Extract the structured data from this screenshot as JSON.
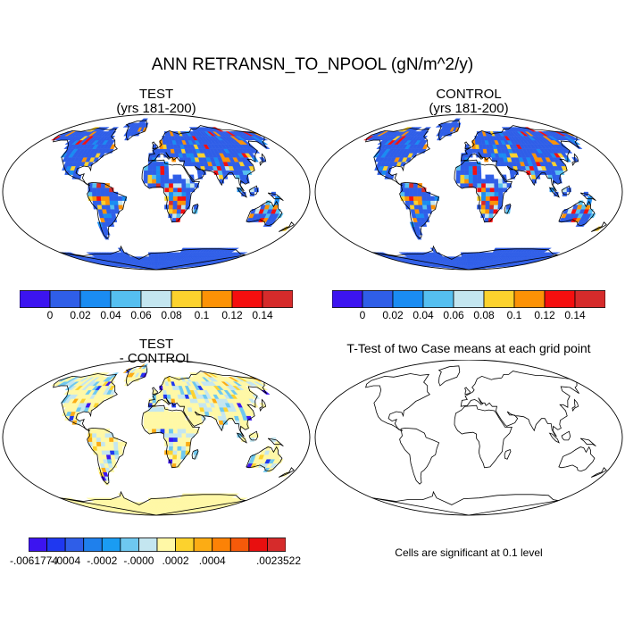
{
  "title": "ANN RETRANSN_TO_NPOOL (gN/m^2/y)",
  "panels": {
    "test": {
      "title": "TEST",
      "subtitle": "(yrs 181-200)"
    },
    "control": {
      "title": "CONTROL",
      "subtitle": "(yrs 181-200)"
    },
    "diff": {
      "title": "TEST",
      "subtitle": "- CONTROL"
    },
    "ttest": {
      "title": "T-Test of two Case means at each grid point"
    }
  },
  "colorbar_main": {
    "colors": [
      "#3c14f0",
      "#2f5ee8",
      "#1a8cf2",
      "#55bff0",
      "#c4e6f0",
      "#fcd22d",
      "#fc9206",
      "#f50f0f",
      "#d62b2b"
    ],
    "labels": [
      "0",
      "0.02",
      "0.04",
      "0.06",
      "0.08",
      "0.1",
      "0.12",
      "0.14"
    ]
  },
  "colorbar_diff": {
    "colors": [
      "#3c14f0",
      "#1f38f0",
      "#2f5ee8",
      "#1f80ec",
      "#1a9cf2",
      "#6ec8f0",
      "#c4e6f0",
      "#fff8a6",
      "#fcd22d",
      "#fcac14",
      "#fc8206",
      "#f55a0a",
      "#e80f0f",
      "#d62b2b"
    ],
    "labels": [
      "-.0061774",
      "-.0004",
      "-.0002",
      "-.0000",
      ".0002",
      ".0004",
      ".0023522"
    ]
  },
  "note": "Cells are significant at 0.1 level"
}
